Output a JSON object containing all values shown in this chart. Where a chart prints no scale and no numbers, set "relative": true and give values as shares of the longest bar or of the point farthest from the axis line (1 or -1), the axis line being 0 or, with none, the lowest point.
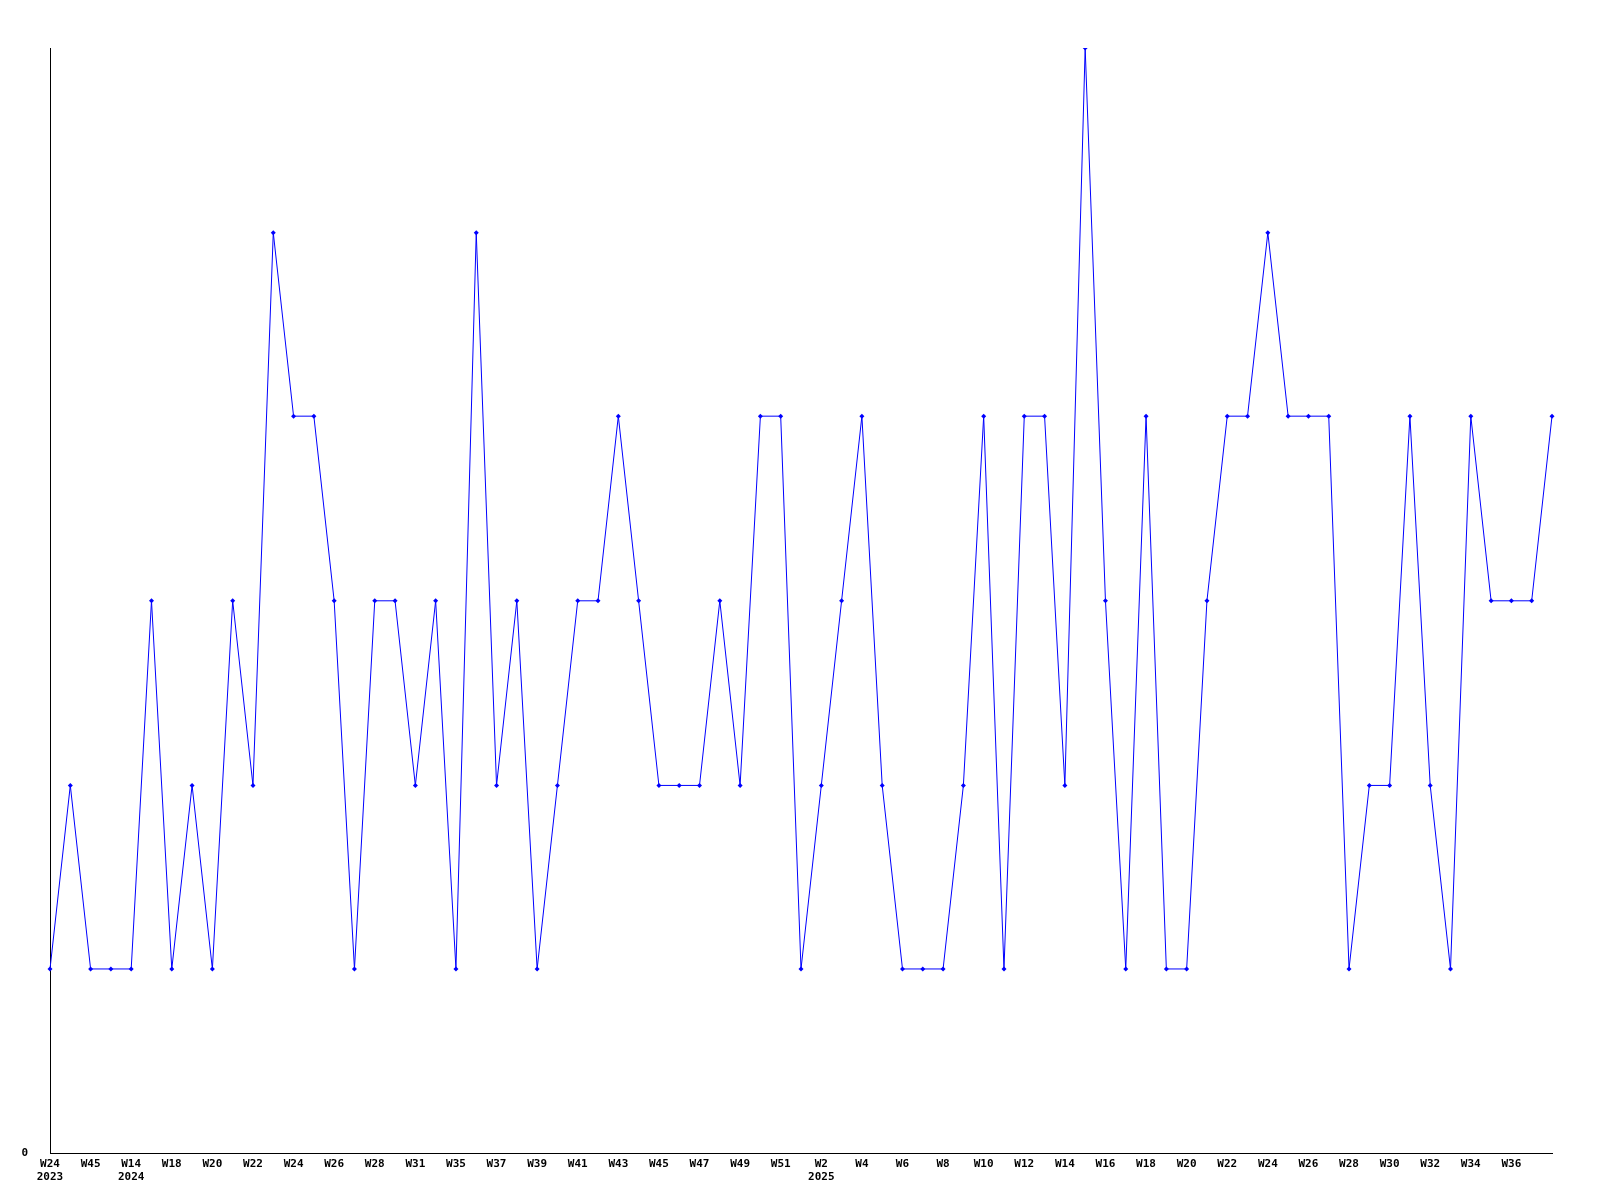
{
  "chart_data": {
    "type": "line",
    "relative": true,
    "color": "#0000ff",
    "marker": "diamond",
    "grid": false,
    "legend": false,
    "categories": [
      "W24\n2023",
      null,
      "W45",
      null,
      "W14\n2024",
      null,
      "W18",
      null,
      "W20",
      null,
      "W22",
      null,
      "W24",
      null,
      "W26",
      null,
      "W28",
      null,
      "W31",
      null,
      "W35",
      null,
      "W37",
      null,
      "W39",
      null,
      "W41",
      null,
      "W43",
      null,
      "W45",
      null,
      "W47",
      null,
      "W49",
      null,
      "W51",
      null,
      "W2\n2025",
      null,
      "W4",
      null,
      "W6",
      null,
      "W8",
      null,
      "W10",
      null,
      "W12",
      null,
      "W14",
      null,
      "W16",
      null,
      "W18",
      null,
      "W20",
      null,
      "W22",
      null,
      "W24",
      null,
      "W26",
      null,
      "W28",
      null,
      "W30",
      null,
      "W32",
      null,
      "W34",
      null,
      "W36",
      null,
      null
    ],
    "values": [
      0.167,
      0.333,
      0.167,
      0.167,
      0.167,
      0.5,
      0.167,
      0.333,
      0.167,
      0.5,
      0.333,
      0.833,
      0.667,
      0.667,
      0.5,
      0.167,
      0.5,
      0.5,
      0.333,
      0.5,
      0.167,
      0.833,
      0.333,
      0.5,
      0.167,
      0.333,
      0.5,
      0.5,
      0.667,
      0.5,
      0.333,
      0.333,
      0.333,
      0.5,
      0.333,
      0.667,
      0.667,
      0.167,
      0.333,
      0.5,
      0.667,
      0.333,
      0.167,
      0.167,
      0.167,
      0.333,
      0.667,
      0.167,
      0.667,
      0.667,
      0.333,
      1,
      0.5,
      0.167,
      0.667,
      0.167,
      0.167,
      0.5,
      0.667,
      0.667,
      0.833,
      0.667,
      0.667,
      0.667,
      0.167,
      0.333,
      0.333,
      0.667,
      0.333,
      0.167,
      0.667,
      0.5,
      0.5,
      0.5,
      0.667
    ],
    "annotations": [
      "0"
    ]
  }
}
